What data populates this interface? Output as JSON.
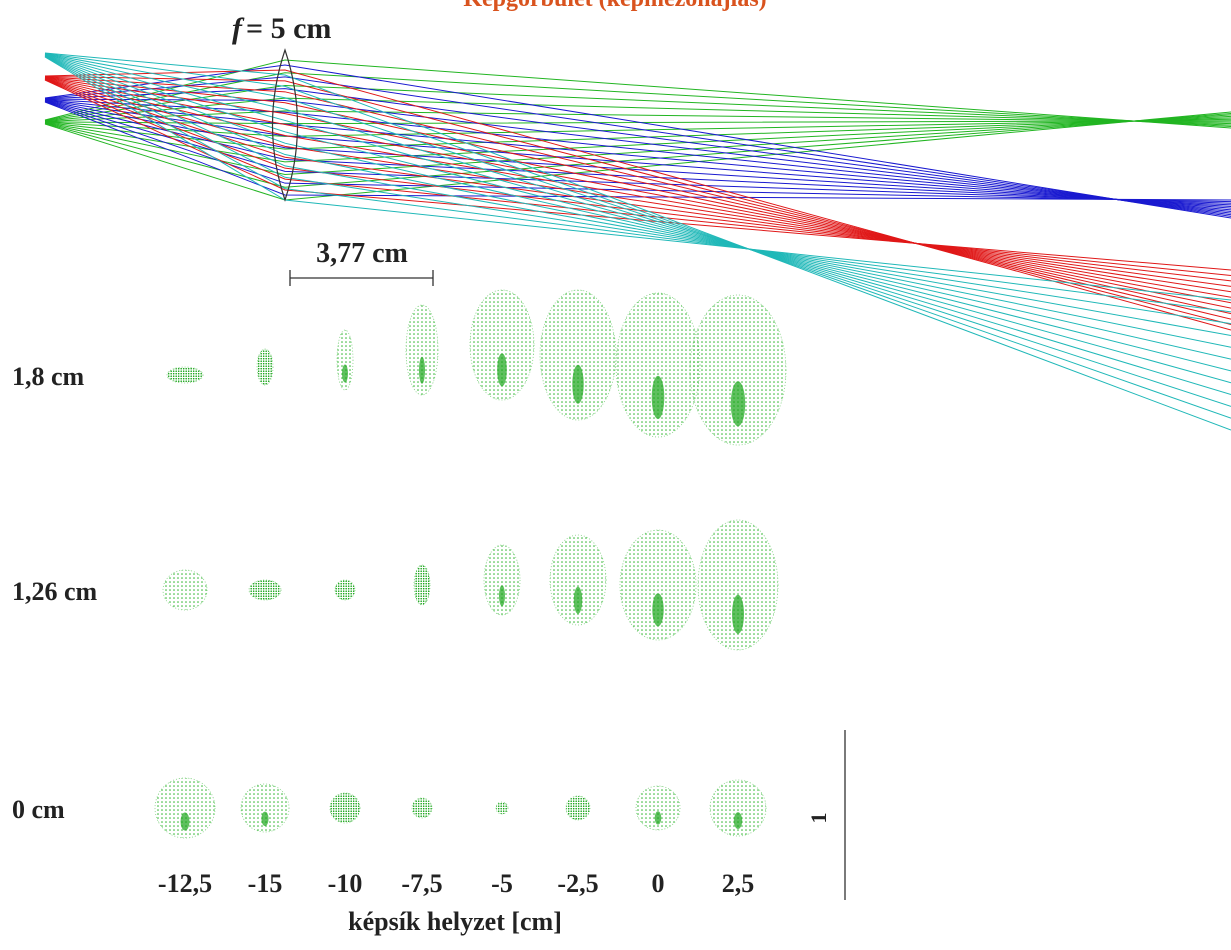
{
  "header": {
    "title": "Képgörbület  (képmezőhajlás)"
  },
  "lens": {
    "symbol": "f",
    "text": "= 5 cm"
  },
  "scale_bar": {
    "label": "3,77 cm"
  },
  "rows": [
    "1,8 cm",
    "1,26 cm",
    "0 cm"
  ],
  "columns": [
    "-12,5",
    "-15",
    "-10",
    "-7,5",
    "-5",
    "-2,5",
    "0",
    "2,5"
  ],
  "axis_label": "képsík helyzet [cm]",
  "scale_marker": "1"
}
